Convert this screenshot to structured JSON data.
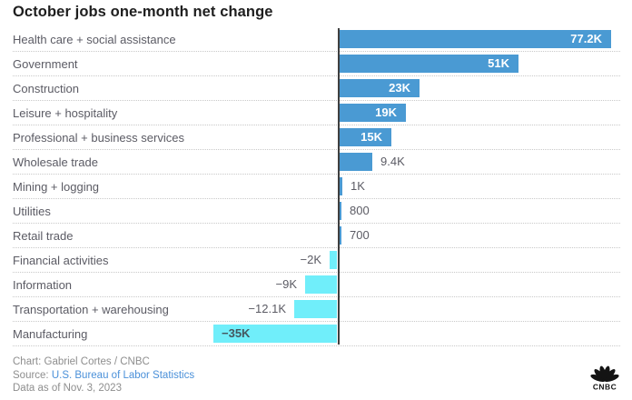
{
  "title": "October jobs one-month net change",
  "footer": {
    "chart_credit": "Chart: Gabriel Cortes / CNBC",
    "source_label": "Source: ",
    "source_link": "U.S. Bureau of Labor Statistics",
    "data_as_of": "Data as of Nov. 3, 2023"
  },
  "logo": {
    "name": "cnbc-peacock-logo",
    "text": "CNBC"
  },
  "colors": {
    "positive_bar": "#4a9ad3",
    "negative_bar": "#70eefa",
    "axis_line": "#3f3f3f",
    "category_text": "#5b5b64",
    "value_outside_text": "#5b5b64",
    "value_inside_positive_text": "#ffffff",
    "value_inside_negative_text": "#45565e",
    "row_separator": "#c9c9c9",
    "source_link": "#4a90d9",
    "footer_text": "#8e8e8e",
    "title_text": "#1e1e1e"
  },
  "chart_data": {
    "type": "bar",
    "orientation": "horizontal",
    "title": "October jobs one-month net change",
    "unit": "net jobs change",
    "categories": [
      "Health care + social assistance",
      "Government",
      "Construction",
      "Leisure + hospitality",
      "Professional + business services",
      "Wholesale trade",
      "Mining + logging",
      "Utilities",
      "Retail trade",
      "Financial activities",
      "Information",
      "Transportation + warehousing",
      "Manufacturing"
    ],
    "values": [
      77200,
      51000,
      23000,
      19000,
      15000,
      9400,
      1000,
      800,
      700,
      -2000,
      -9000,
      -12100,
      -35000
    ],
    "labels": [
      "77.2K",
      "51K",
      "23K",
      "19K",
      "15K",
      "9.4K",
      "1K",
      "800",
      "700",
      "−2K",
      "−9K",
      "−12.1K",
      "−35K"
    ],
    "xlim": [
      -35000,
      77200
    ],
    "zero_axis_line": true,
    "grid": "dotted row separators",
    "legend": "none"
  }
}
